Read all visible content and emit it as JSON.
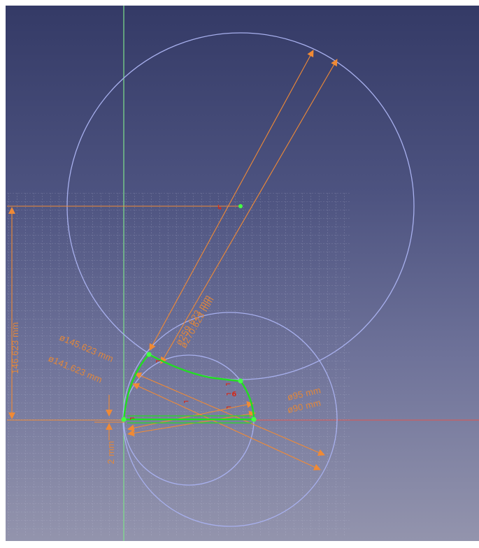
{
  "dimensions": {
    "radius_large_a": "ø259.623 mm",
    "radius_large_b": "ø270.623 mm",
    "radius_145": "ø145.623 mm",
    "radius_141": "ø141.623 mm",
    "radius_95": "ø95 mm",
    "radius_90": "ø90 mm",
    "vertical_distance": "146.623 mm",
    "small_distance": "2 mm"
  },
  "colors": {
    "background_top": "#343a66",
    "background_bottom": "#9394ad",
    "construction_circle": "#a8b0ee",
    "dimension": "#f08a35",
    "profile": "#22dd22",
    "axis_vertical": "#7ee28a",
    "axis_horizontal": "#e0564e",
    "grid": "#c8cbe0"
  }
}
